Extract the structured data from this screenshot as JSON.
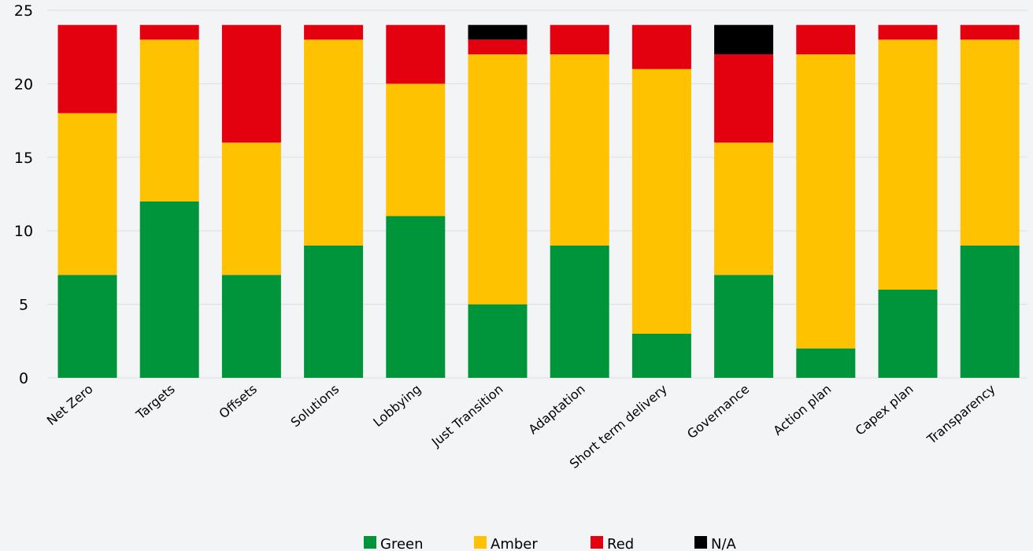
{
  "chart_data": {
    "type": "bar",
    "stacked": true,
    "title": "",
    "xlabel": "",
    "ylabel": "",
    "ylim": [
      0,
      25
    ],
    "yticks": [
      0,
      5,
      10,
      15,
      20,
      25
    ],
    "grid": true,
    "legend_position": "bottom",
    "categories": [
      "Net Zero",
      "Targets",
      "Offsets",
      "Solutions",
      "Lobbying",
      "Just Transition",
      "Adaptation",
      "Short term delivery",
      "Governance",
      "Action plan",
      "Capex plan",
      "Transparency"
    ],
    "series": [
      {
        "name": "Green",
        "color": "#00953b",
        "values": [
          7,
          12,
          7,
          9,
          11,
          5,
          9,
          3,
          7,
          2,
          6,
          9
        ]
      },
      {
        "name": "Amber",
        "color": "#fec200",
        "values": [
          11,
          11,
          9,
          14,
          9,
          17,
          13,
          18,
          9,
          20,
          17,
          14
        ]
      },
      {
        "name": "Red",
        "color": "#e3000f",
        "values": [
          6,
          1,
          8,
          1,
          4,
          1,
          2,
          3,
          6,
          2,
          1,
          1
        ]
      },
      {
        "name": "N/A",
        "color": "#000000",
        "values": [
          0,
          0,
          0,
          0,
          0,
          1,
          0,
          0,
          2,
          0,
          0,
          0
        ]
      }
    ]
  }
}
